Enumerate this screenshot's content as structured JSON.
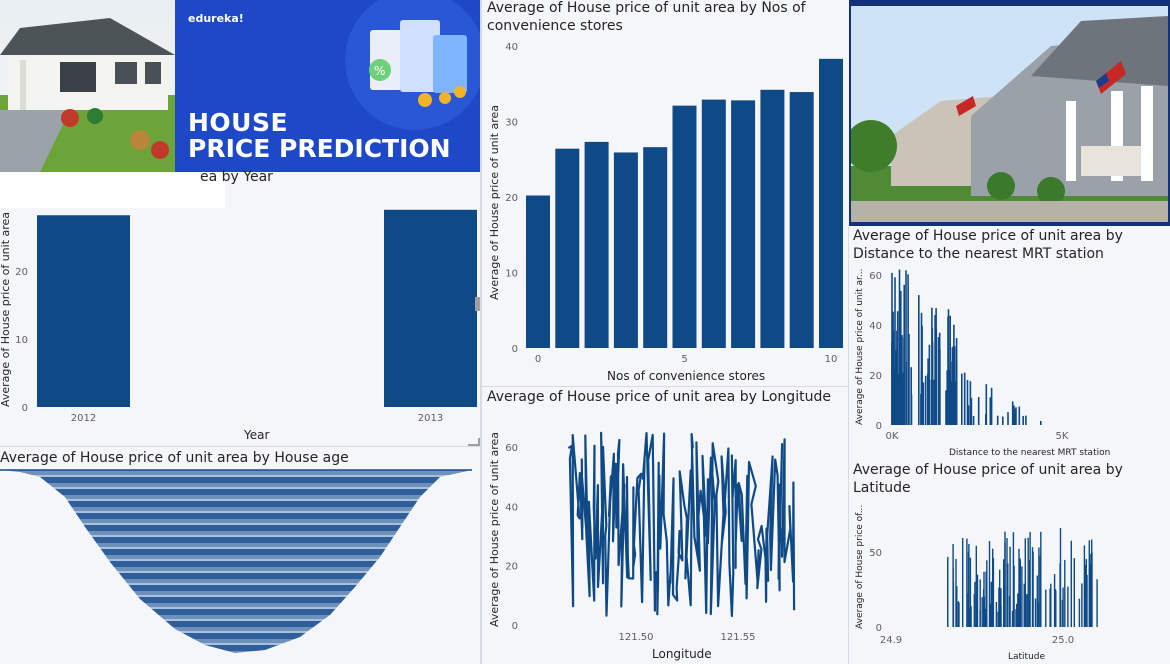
{
  "banner": {
    "brand": "edureka!",
    "title_line1": "HOUSE",
    "title_line2": "PRICE PREDICTION"
  },
  "colors": {
    "bar": "#0f4a87",
    "background": "#f4f5f8",
    "banner": "#1d49c8"
  },
  "visuals": {
    "year": {
      "title_visible": "ea by Year",
      "xlabel": "Year",
      "ylabel": "Average of House price of unit area"
    },
    "age": {
      "title": "Average of House price of unit area by House age"
    },
    "stores": {
      "title_line1": "Average of House price of unit area by Nos of",
      "title_line2": "convenience stores",
      "xlabel": "Nos of convenience stores",
      "ylabel": "Average of House price of unit area"
    },
    "longitude": {
      "title": "Average of House price of unit area by Longitude",
      "xlabel": "Longitude",
      "ylabel": "Average of House price of unit area"
    },
    "mrt": {
      "title_line1": "Average of House price of unit area by",
      "title_line2": "Distance to the nearest MRT station",
      "xlabel": "Distance to the nearest MRT station",
      "ylabel": "Average of House price of unit ar..."
    },
    "latitude": {
      "title_line1": "Average of House price of unit area by",
      "title_line2": "Latitude",
      "xlabel": "Latitude",
      "ylabel": "Average of House price of..."
    }
  },
  "chart_data": [
    {
      "id": "year",
      "type": "bar",
      "categories": [
        "2012",
        "2013"
      ],
      "values": [
        28.2,
        29.0
      ],
      "xlabel": "Year",
      "ylabel": "Average of House price of unit area",
      "ylim": [
        0,
        30
      ],
      "yticks": [
        0,
        10,
        20
      ]
    },
    {
      "id": "stores",
      "type": "bar",
      "x": [
        0,
        1,
        2,
        3,
        4,
        5,
        6,
        7,
        8,
        9,
        10
      ],
      "values": [
        20.2,
        26.4,
        27.3,
        25.9,
        26.6,
        32.1,
        32.9,
        32.8,
        34.2,
        33.9,
        38.3
      ],
      "xlabel": "Nos of convenience stores",
      "ylabel": "Average of House price of unit area",
      "ylim": [
        0,
        40
      ],
      "yticks": [
        0,
        10,
        20,
        30,
        40
      ],
      "xticks": [
        0,
        5,
        10
      ]
    },
    {
      "id": "longitude",
      "type": "line",
      "xlabel": "Longitude",
      "ylabel": "Average of House price of unit area",
      "xlim": [
        121.47,
        121.567
      ],
      "ylim": [
        0,
        68
      ],
      "yticks": [
        0,
        20,
        40,
        60
      ],
      "xticks": [
        "121.50",
        "121.55"
      ]
    },
    {
      "id": "mrt",
      "type": "bar",
      "xlabel": "Distance to the nearest MRT station",
      "ylabel": "Average of House price of unit ar...",
      "xlim": [
        0,
        6500
      ],
      "ylim": [
        0,
        60
      ],
      "yticks": [
        0,
        20,
        40,
        60
      ],
      "xticks": [
        "0K",
        "5K"
      ]
    },
    {
      "id": "latitude",
      "type": "bar",
      "xlabel": "Latitude",
      "ylabel": "Average of House price of...",
      "xlim": [
        24.9,
        25.02
      ],
      "ylim": [
        0,
        75
      ],
      "yticks": [
        0,
        50
      ],
      "xticks": [
        "24.9",
        "25.0"
      ]
    },
    {
      "id": "age",
      "type": "area"
    }
  ]
}
